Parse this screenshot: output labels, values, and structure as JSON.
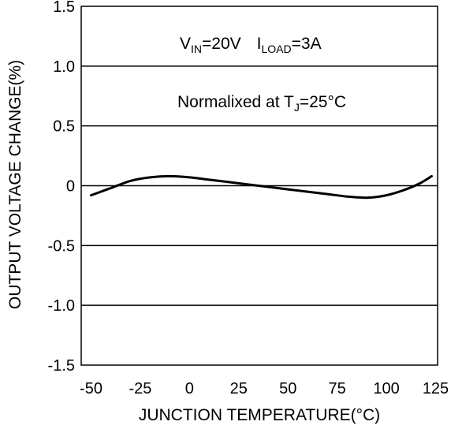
{
  "chart_data": {
    "type": "line",
    "xlabel": "JUNCTION TEMPERATURE(°C)",
    "ylabel": "OUTPUT VOLTAGE CHANGE(%)",
    "xlim": [
      -55,
      126
    ],
    "ylim": [
      -1.5,
      1.5
    ],
    "x_ticks": [
      "-50",
      "-25",
      "0",
      "25",
      "50",
      "75",
      "100",
      "125"
    ],
    "y_ticks": [
      "1.5",
      "1.0",
      "0.5",
      "0",
      "-0.5",
      "-1.0",
      "-1.5"
    ],
    "grid": "horizontal",
    "annotations": {
      "line1": {
        "v": "V",
        "v_sub": "IN",
        "v_val": "=20V",
        "i": "I",
        "i_sub": "LOAD",
        "i_val": "=3A"
      },
      "line2": {
        "prefix": "Normalixed at T",
        "sub": "J",
        "suffix": "=25°C"
      }
    },
    "series": [
      {
        "x": [
          -50,
          -40,
          -30,
          -20,
          -10,
          0,
          10,
          20,
          30,
          40,
          50,
          60,
          70,
          80,
          90,
          100,
          110,
          117,
          123
        ],
        "values": [
          -0.08,
          -0.02,
          0.04,
          0.07,
          0.08,
          0.07,
          0.05,
          0.03,
          0.01,
          -0.01,
          -0.03,
          -0.05,
          -0.07,
          -0.09,
          -0.1,
          -0.08,
          -0.03,
          0.02,
          0.08
        ]
      }
    ]
  }
}
